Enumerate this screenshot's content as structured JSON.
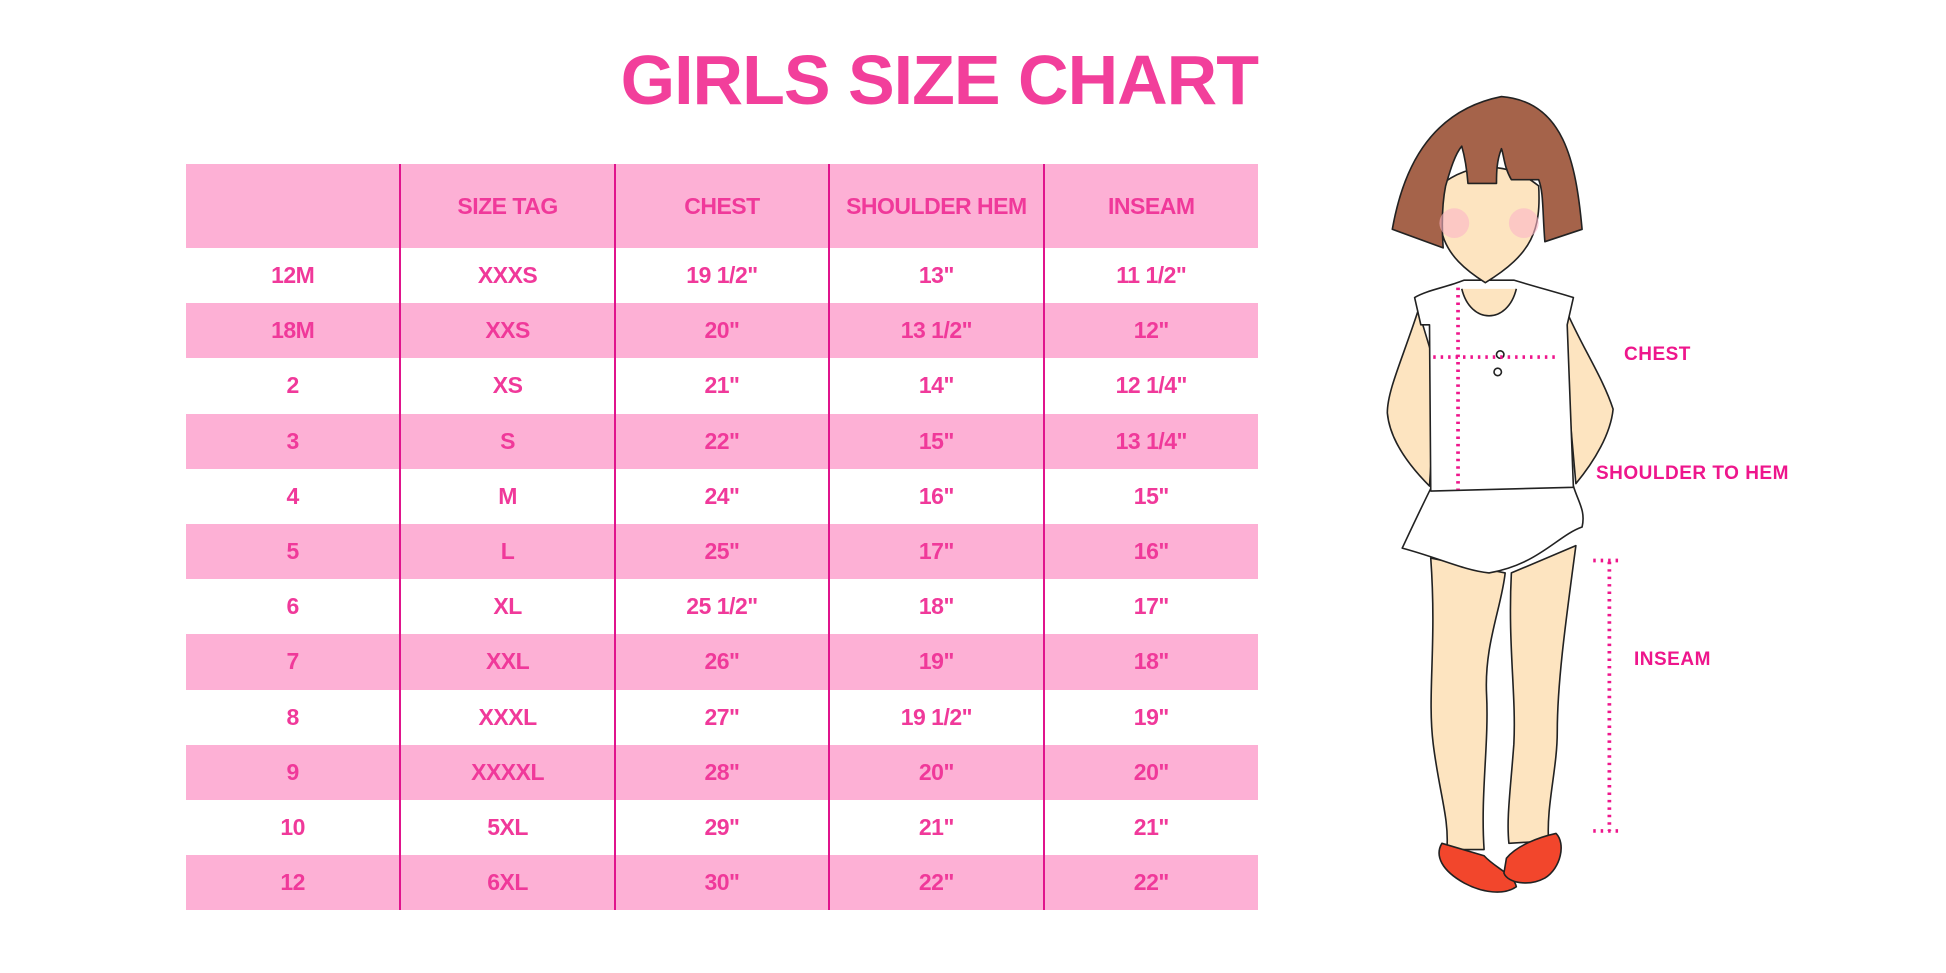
{
  "title": "GIRLS SIZE CHART",
  "colors": {
    "title": "#f23f9b",
    "text": "#f0399a",
    "band": "#fdb0d5",
    "divider": "#e0148c",
    "label": "#ee168c",
    "hair": "#a5634a",
    "skin": "#fde4c0",
    "shoe": "#f2462c"
  },
  "table": {
    "headers": [
      "",
      "SIZE TAG",
      "CHEST",
      "SHOULDER HEM",
      "INSEAM"
    ],
    "rows": [
      [
        "12M",
        "XXXS",
        "19 1/2\"",
        "13\"",
        "11 1/2\""
      ],
      [
        "18M",
        "XXS",
        "20\"",
        "13 1/2\"",
        "12\""
      ],
      [
        "2",
        "XS",
        "21\"",
        "14\"",
        "12 1/4\""
      ],
      [
        "3",
        "S",
        "22\"",
        "15\"",
        "13 1/4\""
      ],
      [
        "4",
        "M",
        "24\"",
        "16\"",
        "15\""
      ],
      [
        "5",
        "L",
        "25\"",
        "17\"",
        "16\""
      ],
      [
        "6",
        "XL",
        "25 1/2\"",
        "18\"",
        "17\""
      ],
      [
        "7",
        "XXL",
        "26\"",
        "19\"",
        "18\""
      ],
      [
        "8",
        "XXXL",
        "27\"",
        "19 1/2\"",
        "19\""
      ],
      [
        "9",
        "XXXXL",
        "28\"",
        "20\"",
        "20\""
      ],
      [
        "10",
        "5XL",
        "29\"",
        "21\"",
        "21\""
      ],
      [
        "12",
        "6XL",
        "30\"",
        "22\"",
        "22\""
      ]
    ]
  },
  "figure": {
    "labels": {
      "chest": "CHEST",
      "shoulder": "SHOULDER TO HEM",
      "inseam": "INSEAM"
    }
  }
}
